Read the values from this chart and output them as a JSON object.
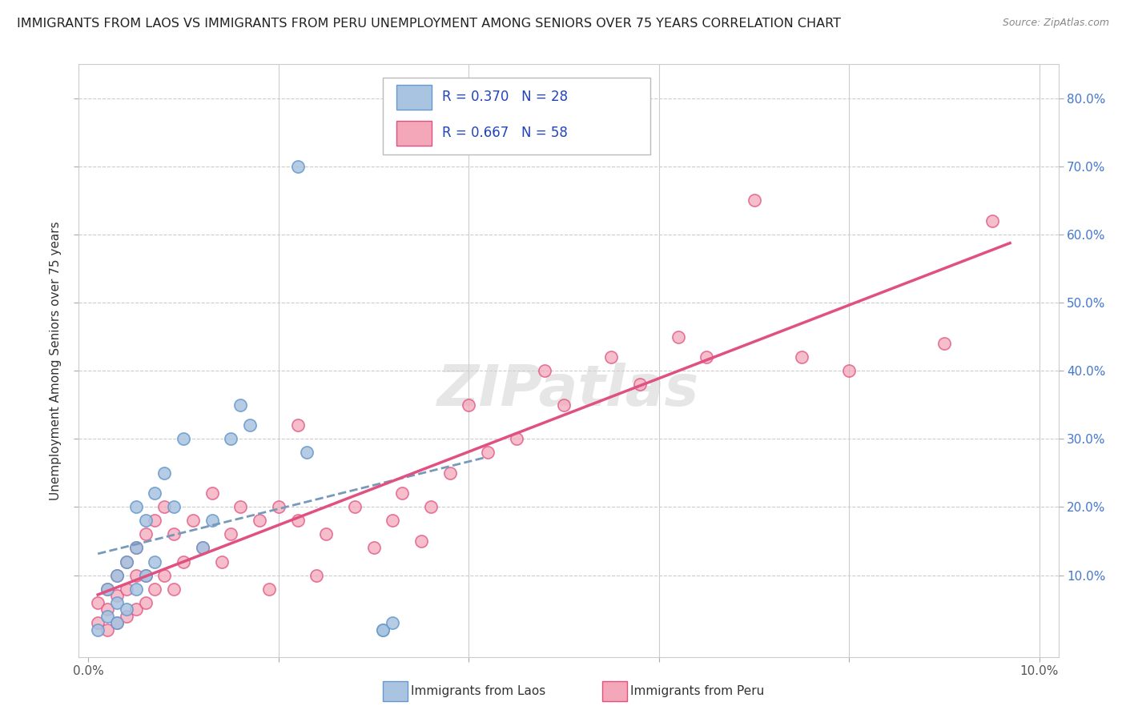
{
  "title": "IMMIGRANTS FROM LAOS VS IMMIGRANTS FROM PERU UNEMPLOYMENT AMONG SENIORS OVER 75 YEARS CORRELATION CHART",
  "source": "Source: ZipAtlas.com",
  "ylabel": "Unemployment Among Seniors over 75 years",
  "legend_laos": "R = 0.370   N = 28",
  "legend_peru": "R = 0.667   N = 58",
  "R_laos": 0.37,
  "N_laos": 28,
  "R_peru": 0.667,
  "N_peru": 58,
  "color_laos_fill": "#a8c4e0",
  "color_peru_fill": "#f4a7b9",
  "color_laos_edge": "#6699cc",
  "color_peru_edge": "#e05080",
  "color_laos_line": "#7799bb",
  "color_peru_line": "#e05080",
  "right_axis_ticks": [
    0.1,
    0.2,
    0.3,
    0.4,
    0.5,
    0.6,
    0.7,
    0.8
  ],
  "right_axis_labels": [
    "10.0%",
    "20.0%",
    "30.0%",
    "40.0%",
    "50.0%",
    "60.0%",
    "70.0%",
    "80.0%"
  ],
  "x_tick_positions": [
    0.0,
    0.02,
    0.04,
    0.06,
    0.08,
    0.1
  ],
  "x_tick_labels": [
    "0.0%",
    "",
    "",
    "",
    "",
    "10.0%"
  ],
  "laos_x": [
    0.001,
    0.002,
    0.002,
    0.003,
    0.003,
    0.003,
    0.004,
    0.004,
    0.005,
    0.005,
    0.005,
    0.006,
    0.006,
    0.007,
    0.007,
    0.008,
    0.009,
    0.01,
    0.012,
    0.013,
    0.015,
    0.016,
    0.017,
    0.022,
    0.023,
    0.031,
    0.031,
    0.032
  ],
  "laos_y": [
    0.02,
    0.04,
    0.08,
    0.03,
    0.06,
    0.1,
    0.05,
    0.12,
    0.08,
    0.14,
    0.2,
    0.1,
    0.18,
    0.12,
    0.22,
    0.25,
    0.2,
    0.3,
    0.14,
    0.18,
    0.3,
    0.35,
    0.32,
    0.7,
    0.28,
    0.02,
    0.02,
    0.03
  ],
  "peru_x": [
    0.001,
    0.001,
    0.002,
    0.002,
    0.002,
    0.003,
    0.003,
    0.003,
    0.004,
    0.004,
    0.004,
    0.005,
    0.005,
    0.005,
    0.006,
    0.006,
    0.006,
    0.007,
    0.007,
    0.008,
    0.008,
    0.009,
    0.009,
    0.01,
    0.011,
    0.012,
    0.013,
    0.014,
    0.015,
    0.016,
    0.018,
    0.019,
    0.02,
    0.022,
    0.022,
    0.024,
    0.025,
    0.028,
    0.03,
    0.032,
    0.033,
    0.035,
    0.036,
    0.038,
    0.04,
    0.042,
    0.045,
    0.048,
    0.05,
    0.055,
    0.058,
    0.062,
    0.065,
    0.07,
    0.075,
    0.08,
    0.09,
    0.095
  ],
  "peru_y": [
    0.03,
    0.06,
    0.02,
    0.05,
    0.08,
    0.03,
    0.07,
    0.1,
    0.04,
    0.08,
    0.12,
    0.05,
    0.1,
    0.14,
    0.06,
    0.1,
    0.16,
    0.08,
    0.18,
    0.1,
    0.2,
    0.08,
    0.16,
    0.12,
    0.18,
    0.14,
    0.22,
    0.12,
    0.16,
    0.2,
    0.18,
    0.08,
    0.2,
    0.18,
    0.32,
    0.1,
    0.16,
    0.2,
    0.14,
    0.18,
    0.22,
    0.15,
    0.2,
    0.25,
    0.35,
    0.28,
    0.3,
    0.4,
    0.35,
    0.42,
    0.38,
    0.45,
    0.42,
    0.65,
    0.42,
    0.4,
    0.44,
    0.62
  ],
  "xlim": [
    -0.001,
    0.102
  ],
  "ylim": [
    -0.02,
    0.85
  ],
  "watermark": "ZIPatlas"
}
